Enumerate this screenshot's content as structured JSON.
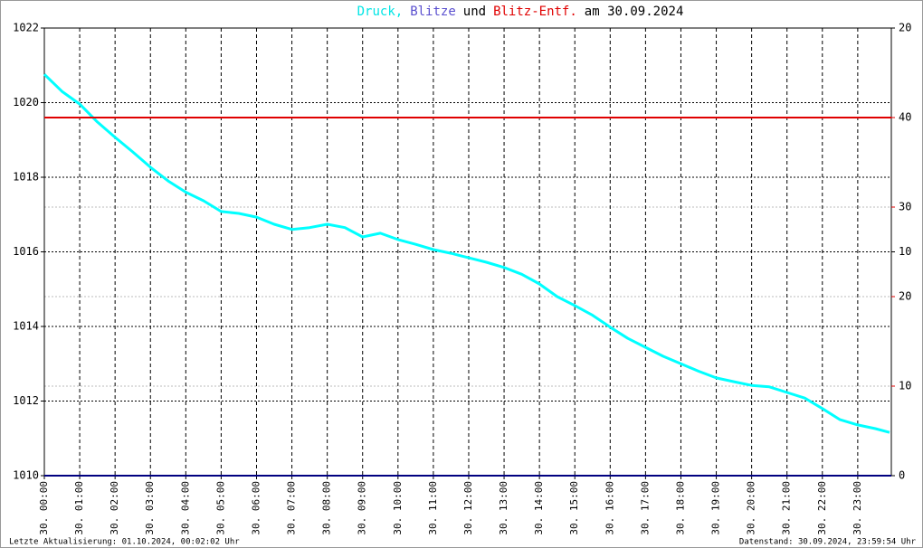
{
  "chart_data": {
    "type": "line",
    "title_parts": [
      {
        "text": "Druck,",
        "color": "#00e5e5"
      },
      {
        "text": "Blitze",
        "color": "#5a4fcf"
      },
      {
        "text": "und",
        "color": "#000000"
      },
      {
        "text": "Blitz-Entf.",
        "color": "#e00000"
      },
      {
        "text": "am 30.09.2024",
        "color": "#000000"
      }
    ],
    "footer_left": "Letzte Aktualisierung: 01.10.2024, 00:02:02 Uhr",
    "footer_right": "Datenstand: 30.09.2024, 23:59:54 Uhr",
    "xlim": [
      0,
      23.95
    ],
    "xticks": [
      {
        "value": 0,
        "label": "30. 00:00"
      },
      {
        "value": 1,
        "label": "30. 01:00"
      },
      {
        "value": 2,
        "label": "30. 02:00"
      },
      {
        "value": 3,
        "label": "30. 03:00"
      },
      {
        "value": 4,
        "label": "30. 04:00"
      },
      {
        "value": 5,
        "label": "30. 05:00"
      },
      {
        "value": 6,
        "label": "30. 06:00"
      },
      {
        "value": 7,
        "label": "30. 07:00"
      },
      {
        "value": 8,
        "label": "30. 08:00"
      },
      {
        "value": 9,
        "label": "30. 09:00"
      },
      {
        "value": 10,
        "label": "30. 10:00"
      },
      {
        "value": 11,
        "label": "30. 11:00"
      },
      {
        "value": 12,
        "label": "30. 12:00"
      },
      {
        "value": 13,
        "label": "30. 13:00"
      },
      {
        "value": 14,
        "label": "30. 14:00"
      },
      {
        "value": 15,
        "label": "30. 15:00"
      },
      {
        "value": 16,
        "label": "30. 16:00"
      },
      {
        "value": 17,
        "label": "30. 17:00"
      },
      {
        "value": 18,
        "label": "30. 18:00"
      },
      {
        "value": 19,
        "label": "30. 19:00"
      },
      {
        "value": 20,
        "label": "30. 20:00"
      },
      {
        "value": 21,
        "label": "30. 21:00"
      },
      {
        "value": 22,
        "label": "30. 22:00"
      },
      {
        "value": 23,
        "label": "30. 23:00"
      }
    ],
    "ylim": [
      1010,
      1022
    ],
    "yticks": [
      1010,
      1012,
      1014,
      1016,
      1018,
      1020,
      1022
    ],
    "y2lim": [
      0,
      20
    ],
    "y2ticks": [
      0,
      10,
      20
    ],
    "y2color": "#000000",
    "y3lim": [
      0,
      50
    ],
    "y3ticks": [
      10,
      20,
      30,
      40
    ],
    "y3color": "#e00000",
    "grid": true,
    "series": [
      {
        "color": "#00ffff",
        "axis": "y",
        "x": [
          0,
          0.5,
          1,
          1.5,
          2,
          2.5,
          3,
          3.5,
          4,
          4.5,
          5,
          5.5,
          6,
          6.5,
          7,
          7.5,
          8,
          8.5,
          9,
          9.5,
          10,
          10.5,
          11,
          11.5,
          12,
          12.5,
          13,
          13.5,
          14,
          14.5,
          15,
          15.5,
          16,
          16.5,
          17,
          17.5,
          18,
          18.5,
          19,
          19.5,
          20,
          20.5,
          21,
          21.5,
          22,
          22.5,
          23,
          23.5,
          23.9
        ],
        "values": [
          1020.76,
          1020.3,
          1019.96,
          1019.48,
          1019.07,
          1018.68,
          1018.27,
          1017.9,
          1017.6,
          1017.37,
          1017.08,
          1017.03,
          1016.93,
          1016.74,
          1016.6,
          1016.65,
          1016.74,
          1016.65,
          1016.4,
          1016.5,
          1016.33,
          1016.2,
          1016.06,
          1015.96,
          1015.84,
          1015.72,
          1015.58,
          1015.4,
          1015.14,
          1014.8,
          1014.56,
          1014.3,
          1013.98,
          1013.68,
          1013.44,
          1013.2,
          1013.0,
          1012.8,
          1012.62,
          1012.52,
          1012.42,
          1012.38,
          1012.23,
          1012.08,
          1011.8,
          1011.5,
          1011.36,
          1011.26,
          1011.16
        ]
      },
      {
        "color": "#000080",
        "axis": "y2",
        "x": [
          0,
          23.95
        ],
        "values": [
          0,
          0
        ]
      },
      {
        "color": "#e00000",
        "axis": "y3",
        "x": [
          0,
          23.95
        ],
        "values": [
          40,
          40
        ]
      }
    ]
  }
}
